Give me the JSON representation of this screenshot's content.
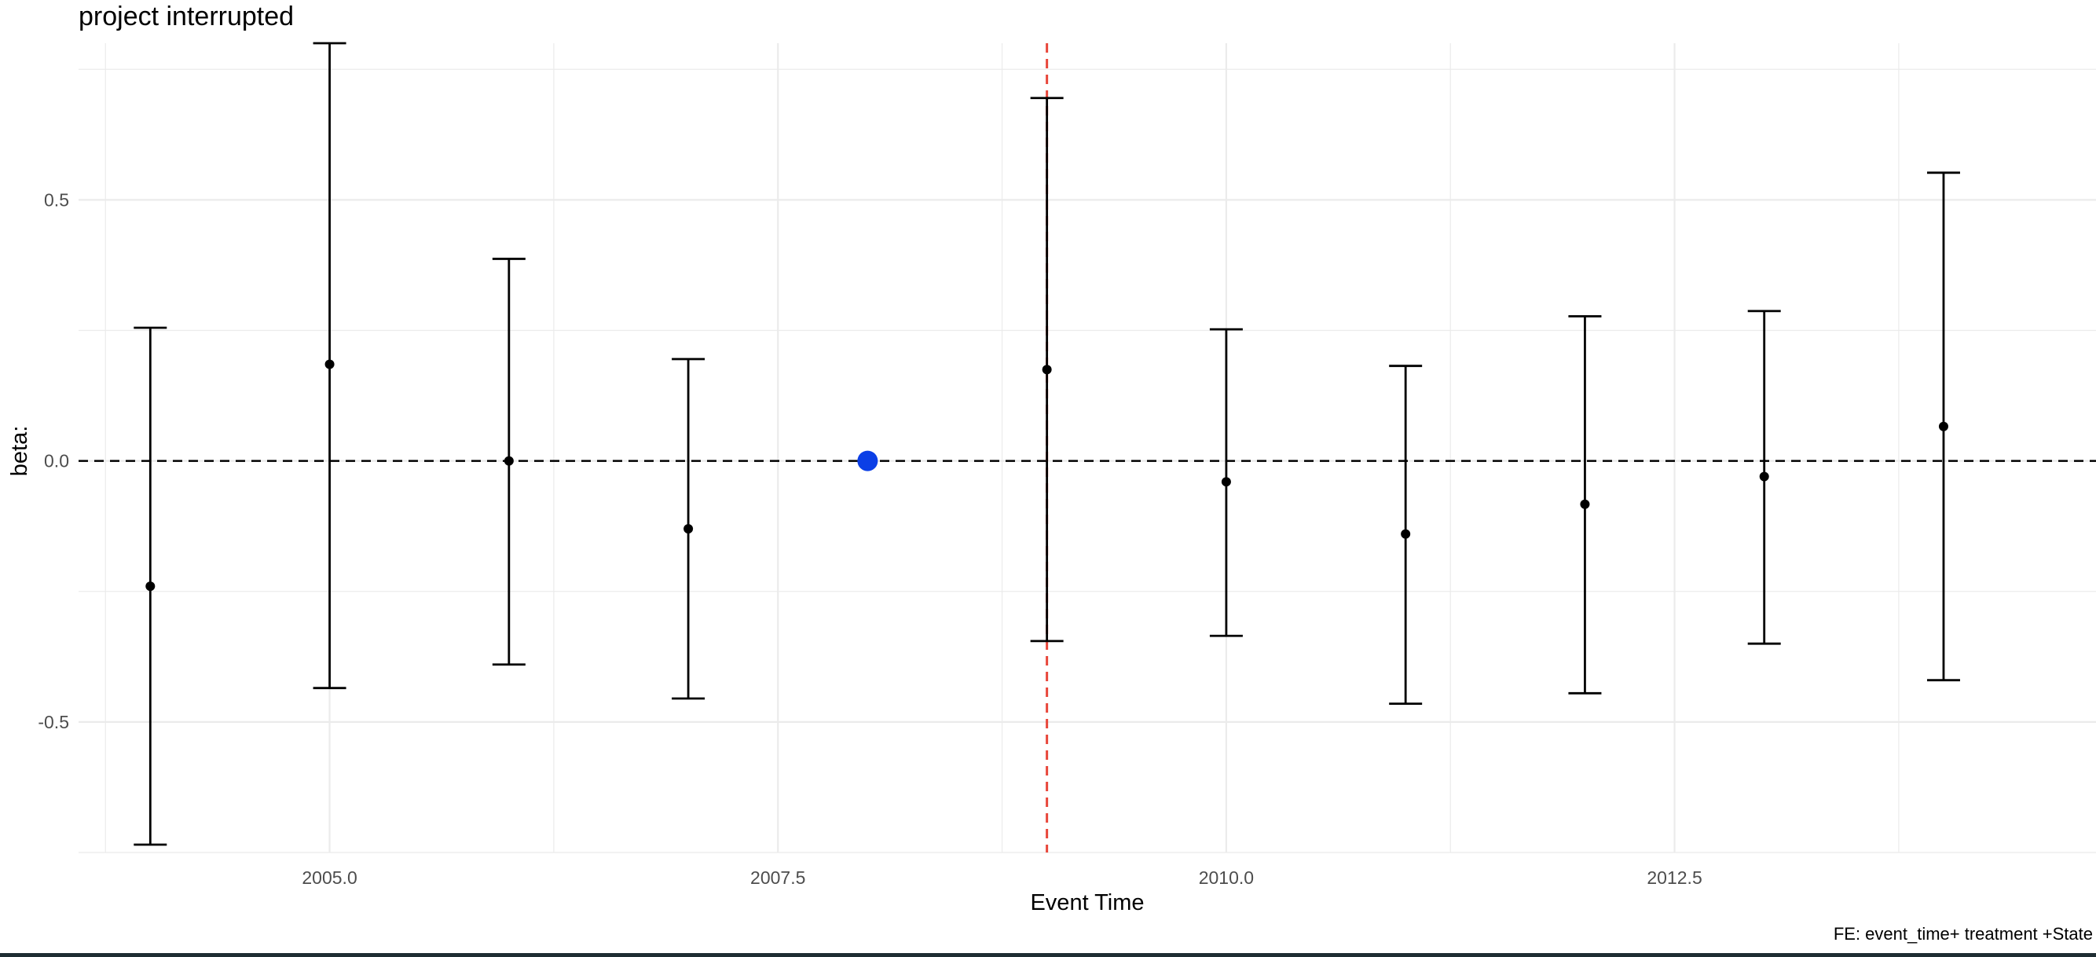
{
  "chart_data": {
    "type": "scatter",
    "title": "project interrupted",
    "xlabel": "Event Time",
    "ylabel": "beta:",
    "caption": "FE: event_time+ treatment +State",
    "xlim": [
      2003.6,
      2014.85
    ],
    "ylim": [
      -0.75,
      0.8
    ],
    "x_ticks": [
      2005.0,
      2007.5,
      2010.0,
      2012.5
    ],
    "x_tick_labels": [
      "2005.0",
      "2007.5",
      "2010.0",
      "2012.5"
    ],
    "y_ticks": [
      0.5,
      0.0,
      -0.5
    ],
    "y_tick_labels": [
      "0.5",
      "0.0",
      "-0.5"
    ],
    "grid": true,
    "reference_hline": 0,
    "reference_vline": 2009,
    "colors": {
      "points": "#000000",
      "reference_point": "#0b3fe6",
      "vline": "#e8463a",
      "grid": "#ebebeb"
    },
    "estimates": [
      {
        "x": 2004,
        "beta": -0.24,
        "lower": -0.735,
        "upper": 0.255
      },
      {
        "x": 2005,
        "beta": 0.185,
        "lower": -0.435,
        "upper": 0.8
      },
      {
        "x": 2006,
        "beta": 0.0,
        "lower": -0.39,
        "upper": 0.387
      },
      {
        "x": 2007,
        "beta": -0.13,
        "lower": -0.455,
        "upper": 0.195
      },
      {
        "x": 2009,
        "beta": 0.175,
        "lower": -0.345,
        "upper": 0.695
      },
      {
        "x": 2010,
        "beta": -0.04,
        "lower": -0.335,
        "upper": 0.252
      },
      {
        "x": 2011,
        "beta": -0.14,
        "lower": -0.465,
        "upper": 0.182
      },
      {
        "x": 2012,
        "beta": -0.083,
        "lower": -0.445,
        "upper": 0.277
      },
      {
        "x": 2013,
        "beta": -0.03,
        "lower": -0.35,
        "upper": 0.287
      },
      {
        "x": 2014,
        "beta": 0.066,
        "lower": -0.42,
        "upper": 0.552
      }
    ],
    "reference_point": {
      "x": 2008,
      "beta": 0.0
    }
  }
}
